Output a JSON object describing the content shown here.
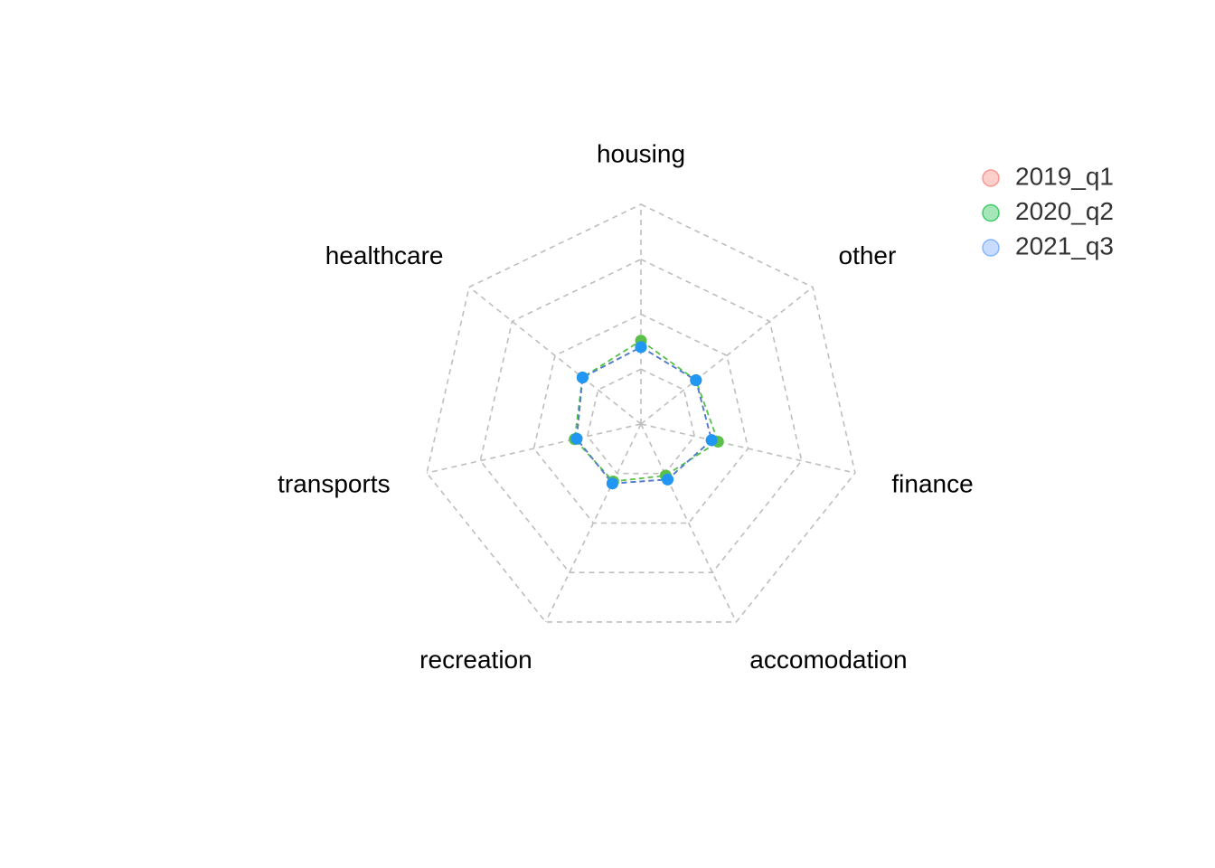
{
  "chart_data": {
    "type": "radar",
    "categories": [
      "housing",
      "other",
      "finance",
      "accomodation",
      "recreation",
      "transports",
      "healthcare"
    ],
    "series": [
      {
        "name": "2019_q1",
        "color": "#F8766D",
        "values": [
          0.35,
          0.32,
          0.33,
          0.28,
          0.3,
          0.3,
          0.34
        ]
      },
      {
        "name": "2020_q2",
        "color": "#00BA38",
        "values": [
          0.38,
          0.32,
          0.36,
          0.26,
          0.29,
          0.31,
          0.34
        ]
      },
      {
        "name": "2021_q3",
        "color": "#619CFF",
        "values": [
          0.35,
          0.32,
          0.33,
          0.28,
          0.3,
          0.3,
          0.34
        ]
      }
    ],
    "rlim": [
      0,
      1
    ],
    "grid_levels": [
      0.25,
      0.5,
      0.75,
      1.0
    ],
    "grid": true,
    "legend_position": "top-right",
    "marker_color_observed": "#2196F3"
  }
}
